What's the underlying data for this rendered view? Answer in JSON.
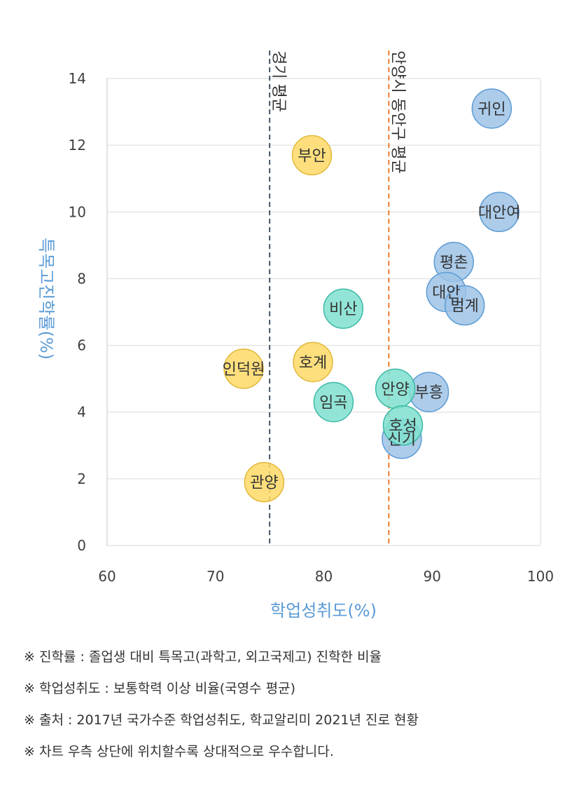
{
  "chart_data": {
    "type": "scatter",
    "xlabel": "학업성취도(%)",
    "ylabel": "특목고진학률(%)",
    "xlim": [
      60,
      100
    ],
    "ylim": [
      0,
      14
    ],
    "x_ticks": [
      60,
      70,
      80,
      90,
      100
    ],
    "y_ticks": [
      0,
      2,
      4,
      6,
      8,
      10,
      12,
      14
    ],
    "grid": "horizontal",
    "reference_lines": [
      {
        "label": "경기 평균",
        "x": 75,
        "color": "#44546a"
      },
      {
        "label": "안양시 동안구 평균",
        "x": 86,
        "color": "#ed7d31"
      }
    ],
    "groups": [
      {
        "color": "#9dc3e6",
        "stroke": "#5b9bd5",
        "points": [
          {
            "label": "귀인",
            "x": 95.5,
            "y": 13.1
          },
          {
            "label": "대안여",
            "x": 96.2,
            "y": 10.0
          },
          {
            "label": "평촌",
            "x": 92.0,
            "y": 8.5
          },
          {
            "label": "대안",
            "x": 91.3,
            "y": 7.6
          },
          {
            "label": "범계",
            "x": 93.0,
            "y": 7.2
          },
          {
            "label": "부흥",
            "x": 89.7,
            "y": 4.6
          },
          {
            "label": "신기",
            "x": 87.2,
            "y": 3.2
          }
        ]
      },
      {
        "color": "#7fe0cf",
        "stroke": "#3cb9a6",
        "points": [
          {
            "label": "비산",
            "x": 81.8,
            "y": 7.1
          },
          {
            "label": "안양",
            "x": 86.6,
            "y": 4.7
          },
          {
            "label": "임곡",
            "x": 80.9,
            "y": 4.3
          },
          {
            "label": "호성",
            "x": 87.3,
            "y": 3.6
          }
        ]
      },
      {
        "color": "#ffd966",
        "stroke": "#e0b93a",
        "points": [
          {
            "label": "부안",
            "x": 78.9,
            "y": 11.7
          },
          {
            "label": "호계",
            "x": 79.0,
            "y": 5.5
          },
          {
            "label": "인덕원",
            "x": 72.6,
            "y": 5.3
          },
          {
            "label": "관양",
            "x": 74.5,
            "y": 1.9
          }
        ]
      }
    ]
  },
  "notes": [
    "※ 진학률 : 졸업생 대비 특목고(과학고, 외고국제고) 진학한 비율",
    "※ 학업성취도 : 보통학력 이상 비율(국영수 평균)",
    "※ 출처 : 2017년 국가수준 학업성취도, 학교알리미 2021년 진로 현황",
    "※ 차트 우측 상단에 위치할수록 상대적으로 우수합니다."
  ]
}
